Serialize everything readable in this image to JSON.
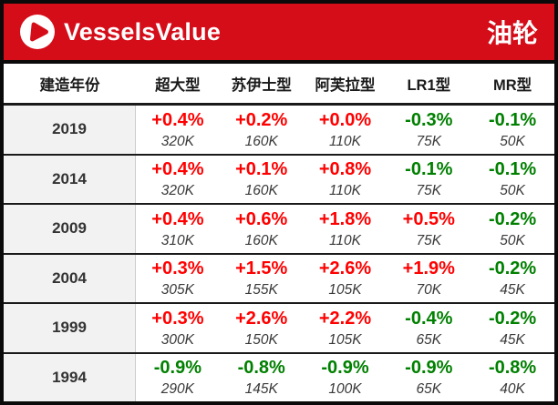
{
  "header": {
    "brand": "VesselsValue",
    "title": "油轮"
  },
  "colors": {
    "header_bg": "#d40d19",
    "positive": "#ff0000",
    "negative": "#008000",
    "year_col_bg": "#f2f2f2"
  },
  "chart_data": {
    "type": "table",
    "title": "油轮",
    "columns": [
      "建造年份",
      "超大型",
      "苏伊士型",
      "阿芙拉型",
      "LR1型",
      "MR型"
    ],
    "rows": [
      {
        "year": "2019",
        "cells": [
          {
            "pct": "+0.4%",
            "value": "320K"
          },
          {
            "pct": "+0.2%",
            "value": "160K"
          },
          {
            "pct": "+0.0%",
            "value": "110K"
          },
          {
            "pct": "-0.3%",
            "value": "75K"
          },
          {
            "pct": "-0.1%",
            "value": "50K"
          }
        ]
      },
      {
        "year": "2014",
        "cells": [
          {
            "pct": "+0.4%",
            "value": "320K"
          },
          {
            "pct": "+0.1%",
            "value": "160K"
          },
          {
            "pct": "+0.8%",
            "value": "110K"
          },
          {
            "pct": "-0.1%",
            "value": "75K"
          },
          {
            "pct": "-0.1%",
            "value": "50K"
          }
        ]
      },
      {
        "year": "2009",
        "cells": [
          {
            "pct": "+0.4%",
            "value": "310K"
          },
          {
            "pct": "+0.6%",
            "value": "160K"
          },
          {
            "pct": "+1.8%",
            "value": "110K"
          },
          {
            "pct": "+0.5%",
            "value": "75K"
          },
          {
            "pct": "-0.2%",
            "value": "50K"
          }
        ]
      },
      {
        "year": "2004",
        "cells": [
          {
            "pct": "+0.3%",
            "value": "305K"
          },
          {
            "pct": "+1.5%",
            "value": "155K"
          },
          {
            "pct": "+2.6%",
            "value": "105K"
          },
          {
            "pct": "+1.9%",
            "value": "70K"
          },
          {
            "pct": "-0.2%",
            "value": "45K"
          }
        ]
      },
      {
        "year": "1999",
        "cells": [
          {
            "pct": "+0.3%",
            "value": "300K"
          },
          {
            "pct": "+2.6%",
            "value": "150K"
          },
          {
            "pct": "+2.2%",
            "value": "105K"
          },
          {
            "pct": "-0.4%",
            "value": "65K"
          },
          {
            "pct": "-0.2%",
            "value": "45K"
          }
        ]
      },
      {
        "year": "1994",
        "cells": [
          {
            "pct": "-0.9%",
            "value": "290K"
          },
          {
            "pct": "-0.8%",
            "value": "145K"
          },
          {
            "pct": "-0.9%",
            "value": "100K"
          },
          {
            "pct": "-0.9%",
            "value": "65K"
          },
          {
            "pct": "-0.8%",
            "value": "40K"
          }
        ]
      }
    ]
  }
}
